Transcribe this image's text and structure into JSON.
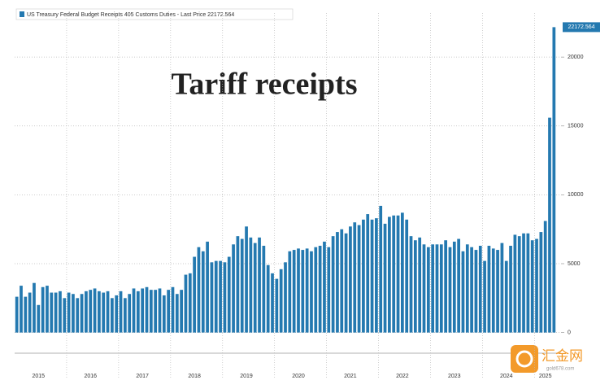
{
  "chart_data": {
    "type": "bar",
    "annotation": "Tariff receipts",
    "series": [
      {
        "name": "US Treasury Federal Budget Receipts 405 Customs Duties - Last Price 22172.564",
        "color": "#2479b0",
        "values": [
          2600,
          3400,
          2600,
          2900,
          3600,
          2000,
          3300,
          3400,
          2900,
          2900,
          3000,
          2500,
          2900,
          2800,
          2500,
          2800,
          3000,
          3100,
          3200,
          3000,
          2900,
          3000,
          2500,
          2700,
          3000,
          2500,
          2800,
          3200,
          3000,
          3200,
          3300,
          3100,
          3100,
          3200,
          2700,
          3100,
          3300,
          2800,
          3100,
          4200,
          4300,
          5500,
          6200,
          5900,
          6600,
          5100,
          5200,
          5200,
          5100,
          5500,
          6400,
          7000,
          6800,
          7700,
          6900,
          6500,
          6900,
          6300,
          4900,
          4300,
          3900,
          4600,
          5100,
          5900,
          6000,
          6100,
          6000,
          6100,
          5900,
          6200,
          6300,
          6600,
          6200,
          7000,
          7300,
          7500,
          7200,
          7700,
          8000,
          7800,
          8200,
          8600,
          8200,
          8300,
          9200,
          7900,
          8400,
          8500,
          8500,
          8700,
          8200,
          7000,
          6700,
          6900,
          6400,
          6200,
          6400,
          6400,
          6400,
          6700,
          6200,
          6600,
          6800,
          5900,
          6400,
          6200,
          6000,
          6300,
          5200,
          6300,
          6100,
          6000,
          6500,
          5200,
          6300,
          7100,
          7000,
          7200,
          7200,
          6700,
          6800,
          7300,
          8100,
          15600,
          22172.564
        ]
      }
    ],
    "categories": [
      null,
      null,
      null,
      null,
      null,
      "2015",
      null,
      null,
      null,
      null,
      null,
      null,
      null,
      null,
      null,
      null,
      null,
      "2016",
      null,
      null,
      null,
      null,
      null,
      null,
      null,
      null,
      null,
      null,
      null,
      "2017",
      null,
      null,
      null,
      null,
      null,
      null,
      null,
      null,
      null,
      null,
      null,
      "2018",
      null,
      null,
      null,
      null,
      null,
      null,
      null,
      null,
      null,
      null,
      null,
      "2019",
      null,
      null,
      null,
      null,
      null,
      null,
      null,
      null,
      null,
      null,
      null,
      "2020",
      null,
      null,
      null,
      null,
      null,
      null,
      null,
      null,
      null,
      null,
      null,
      "2021",
      null,
      null,
      null,
      null,
      null,
      null,
      null,
      null,
      null,
      null,
      null,
      "2022",
      null,
      null,
      null,
      null,
      null,
      null,
      null,
      null,
      null,
      null,
      null,
      "2023",
      null,
      null,
      null,
      null,
      null,
      null,
      null,
      null,
      null,
      null,
      null,
      "2024",
      null,
      null,
      null,
      null,
      null,
      null,
      null,
      null,
      "2025",
      null,
      null
    ],
    "ylim": [
      -1500,
      23200
    ],
    "yticks": [
      0,
      5000,
      10000,
      15000,
      20000
    ],
    "grid": true,
    "legend": "upper left"
  },
  "watermark": {
    "name": "汇金网",
    "site": "gold678.com"
  }
}
